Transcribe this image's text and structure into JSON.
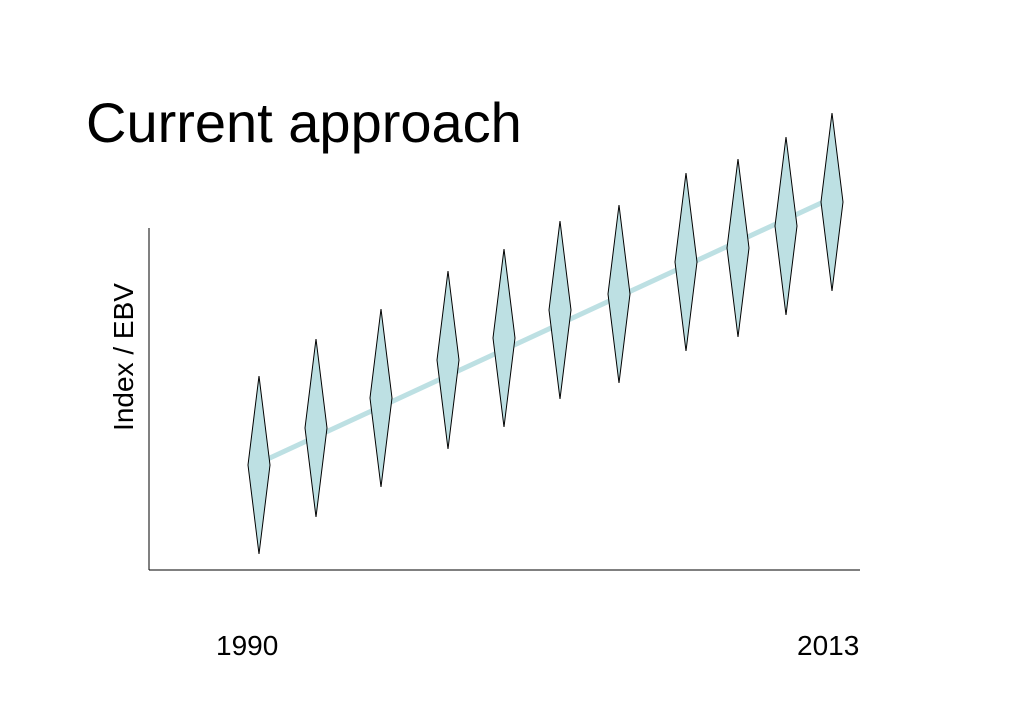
{
  "title": "Current approach",
  "y_axis_label": "Index / EBV",
  "x_axis": {
    "start_label": "1990",
    "end_label": "2013"
  },
  "colors": {
    "diamond_fill": "#bde0e3",
    "trend_line": "#bde0e3",
    "outline": "#000000"
  },
  "diamond_count": 11
}
